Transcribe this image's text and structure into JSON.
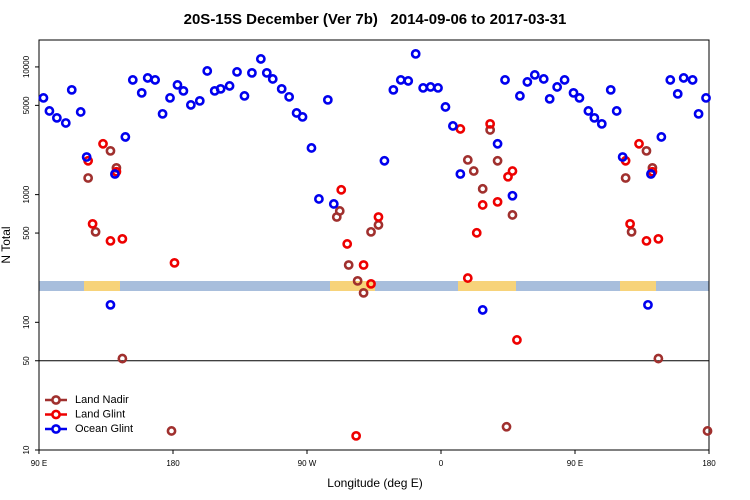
{
  "chart_data": {
    "type": "scatter",
    "title": "20S-15S December (Ver 7b)   2014-09-06 to 2017-03-31",
    "x_label": "Longitude (deg E)",
    "y_label": "N Total",
    "log_y": true,
    "xlim": [
      90,
      540
    ],
    "xticks": [
      {
        "value": 90,
        "label": "90 E"
      },
      {
        "value": 180,
        "label": "180"
      },
      {
        "value": 270,
        "label": "90 W"
      },
      {
        "value": 360,
        "label": "0"
      },
      {
        "value": 450,
        "label": "90 E"
      },
      {
        "value": 540,
        "label": "180"
      }
    ],
    "ylim": [
      10,
      16250
    ],
    "yticks": [
      10,
      50,
      100,
      500,
      1000,
      5000,
      10000
    ],
    "reference_line": 50,
    "legend": "lower left",
    "series": [
      {
        "name": "Land Nadir",
        "color": "#a0302e",
        "x": [
          123,
          128,
          138,
          142,
          146,
          179,
          290,
          292,
          298,
          304,
          308,
          313,
          318,
          378,
          382,
          388,
          393,
          398,
          404,
          408,
          484,
          488,
          498,
          502,
          506,
          539
        ],
        "values": [
          1350,
          511,
          2200,
          1620,
          52,
          14.1,
          668,
          745,
          281,
          211,
          170,
          511,
          579,
          1870,
          1530,
          1110,
          3210,
          1840,
          15.2,
          693,
          1350,
          511,
          2200,
          1620,
          52,
          14.1
        ]
      },
      {
        "name": "Land Glint",
        "color": "#ee0000",
        "x": [
          123,
          126,
          133,
          138,
          142,
          146,
          181,
          293,
          297,
          303,
          308,
          313,
          318,
          373,
          378,
          384,
          388,
          393,
          398,
          405,
          408,
          411,
          484,
          487,
          493,
          498,
          502,
          506
        ],
        "values": [
          1840,
          590,
          2500,
          434,
          1510,
          450,
          292,
          1090,
          411,
          12.9,
          281,
          200,
          668,
          3270,
          222,
          502,
          830,
          3580,
          877,
          1380,
          1530,
          72.8,
          1840,
          590,
          2500,
          434,
          1510,
          450
        ]
      },
      {
        "name": "Ocean Glint",
        "color": "#0000ee",
        "x": [
          93,
          97,
          102,
          108,
          112,
          118,
          122,
          138,
          141,
          148,
          153,
          159,
          163,
          168,
          173,
          178,
          183,
          187,
          192,
          198,
          203,
          208,
          212,
          218,
          223,
          228,
          233,
          239,
          243,
          247,
          253,
          258,
          263,
          267,
          273,
          278,
          284,
          288,
          322,
          328,
          333,
          338,
          343,
          348,
          353,
          358,
          363,
          368,
          373,
          388,
          398,
          403,
          408,
          413,
          418,
          423,
          429,
          433,
          438,
          443,
          449,
          453,
          459,
          463,
          468,
          474,
          478,
          482,
          499,
          501,
          508,
          514,
          519,
          523,
          529,
          533,
          538
        ],
        "values": [
          5720,
          4520,
          3990,
          3640,
          6610,
          4440,
          1970,
          137,
          1450,
          2830,
          7910,
          6260,
          8200,
          7910,
          4290,
          5720,
          7230,
          6490,
          5040,
          5420,
          9300,
          6490,
          6730,
          7100,
          9140,
          5930,
          8980,
          11550,
          8980,
          8050,
          6730,
          5830,
          4360,
          4060,
          2320,
          925,
          5520,
          845,
          1840,
          6610,
          7910,
          7770,
          12650,
          6850,
          6970,
          6850,
          4860,
          3450,
          1450,
          125,
          2500,
          7910,
          980,
          5930,
          7630,
          8660,
          8050,
          5620,
          6970,
          7910,
          6260,
          5720,
          4520,
          3990,
          3580,
          6610,
          4520,
          1970,
          137,
          1450,
          2830,
          7910,
          6150,
          8200,
          7910,
          4290,
          5720
        ]
      }
    ]
  }
}
